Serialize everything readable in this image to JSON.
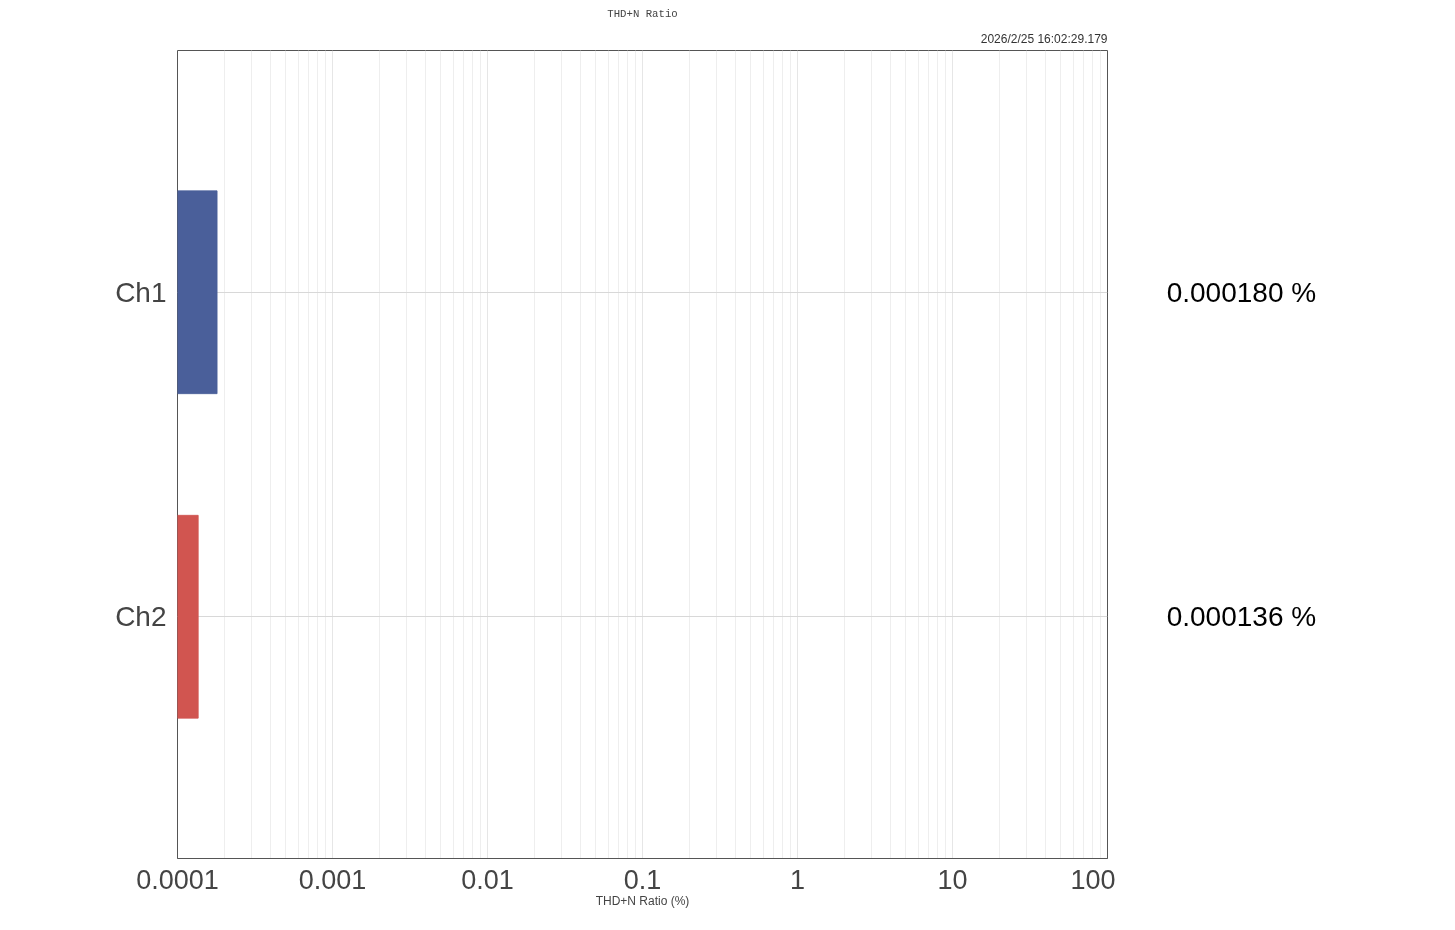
{
  "chart_data": {
    "type": "bar",
    "orientation": "horizontal",
    "title": "THD+N Ratio",
    "xlabel": "THD+N Ratio (%)",
    "annotations": [
      "2026/2/25 16:02:29.179"
    ],
    "categories": [
      "Ch1",
      "Ch2"
    ],
    "values": [
      0.00018,
      0.000136
    ],
    "colors": [
      "#4a5f9a",
      "#d15550"
    ],
    "value_labels": [
      "0.000180 %",
      "0.000136 %"
    ],
    "log": "x",
    "xlim": [
      0.0001,
      100
    ],
    "xticks": [
      0.0001,
      0.001,
      0.01,
      0.1,
      1,
      10,
      100
    ],
    "grid": true,
    "legend": false
  }
}
